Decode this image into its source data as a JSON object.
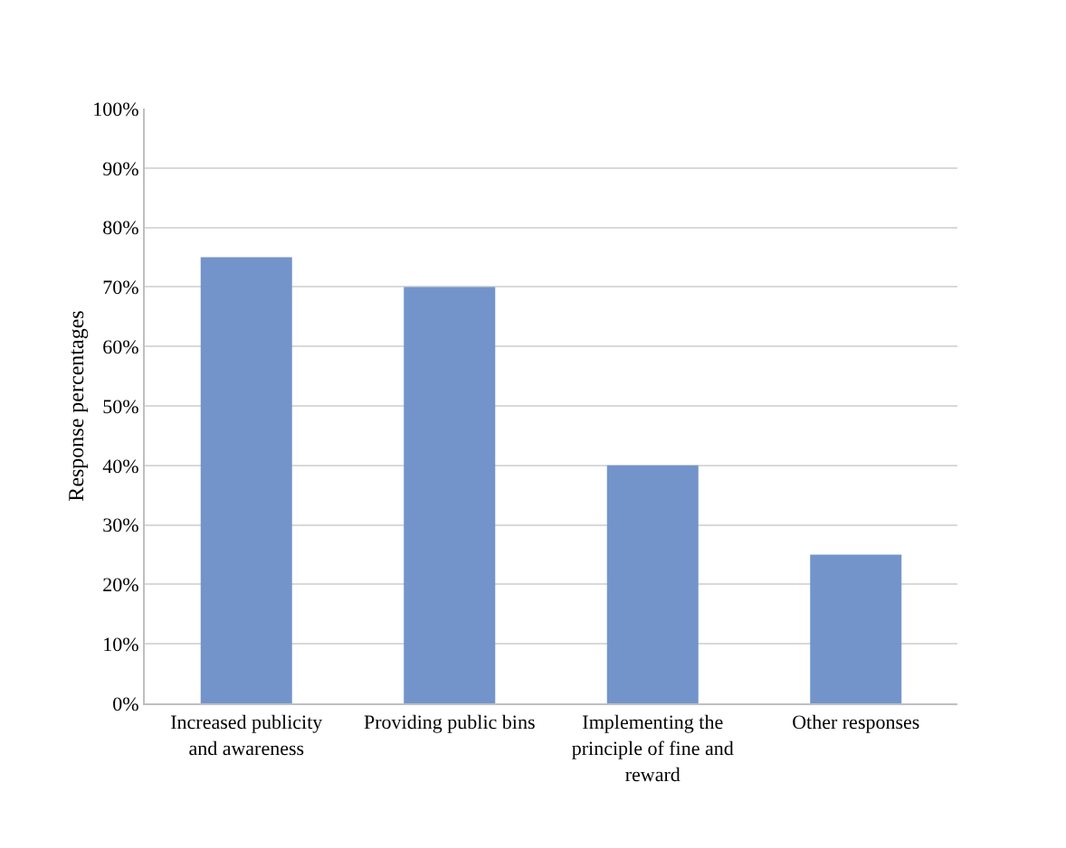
{
  "chart_data": {
    "type": "bar",
    "ylabel": "Response percentages",
    "categories": [
      "Increased publicity and awareness",
      "Providing public bins",
      "Implementing the principle of fine and reward",
      "Other responses"
    ],
    "values": [
      75,
      70,
      40,
      25
    ],
    "color": "#7394cb",
    "ylim": [
      0,
      100
    ],
    "yticks": [
      {
        "value": 0,
        "label": "0%"
      },
      {
        "value": 10,
        "label": "10%"
      },
      {
        "value": 20,
        "label": "20%"
      },
      {
        "value": 30,
        "label": "30%"
      },
      {
        "value": 40,
        "label": "40%"
      },
      {
        "value": 50,
        "label": "50%"
      },
      {
        "value": 60,
        "label": "60%"
      },
      {
        "value": 70,
        "label": "70%"
      },
      {
        "value": 80,
        "label": "80%"
      },
      {
        "value": 90,
        "label": "90%"
      },
      {
        "value": 100,
        "label": "100%"
      }
    ],
    "grid": "y"
  }
}
